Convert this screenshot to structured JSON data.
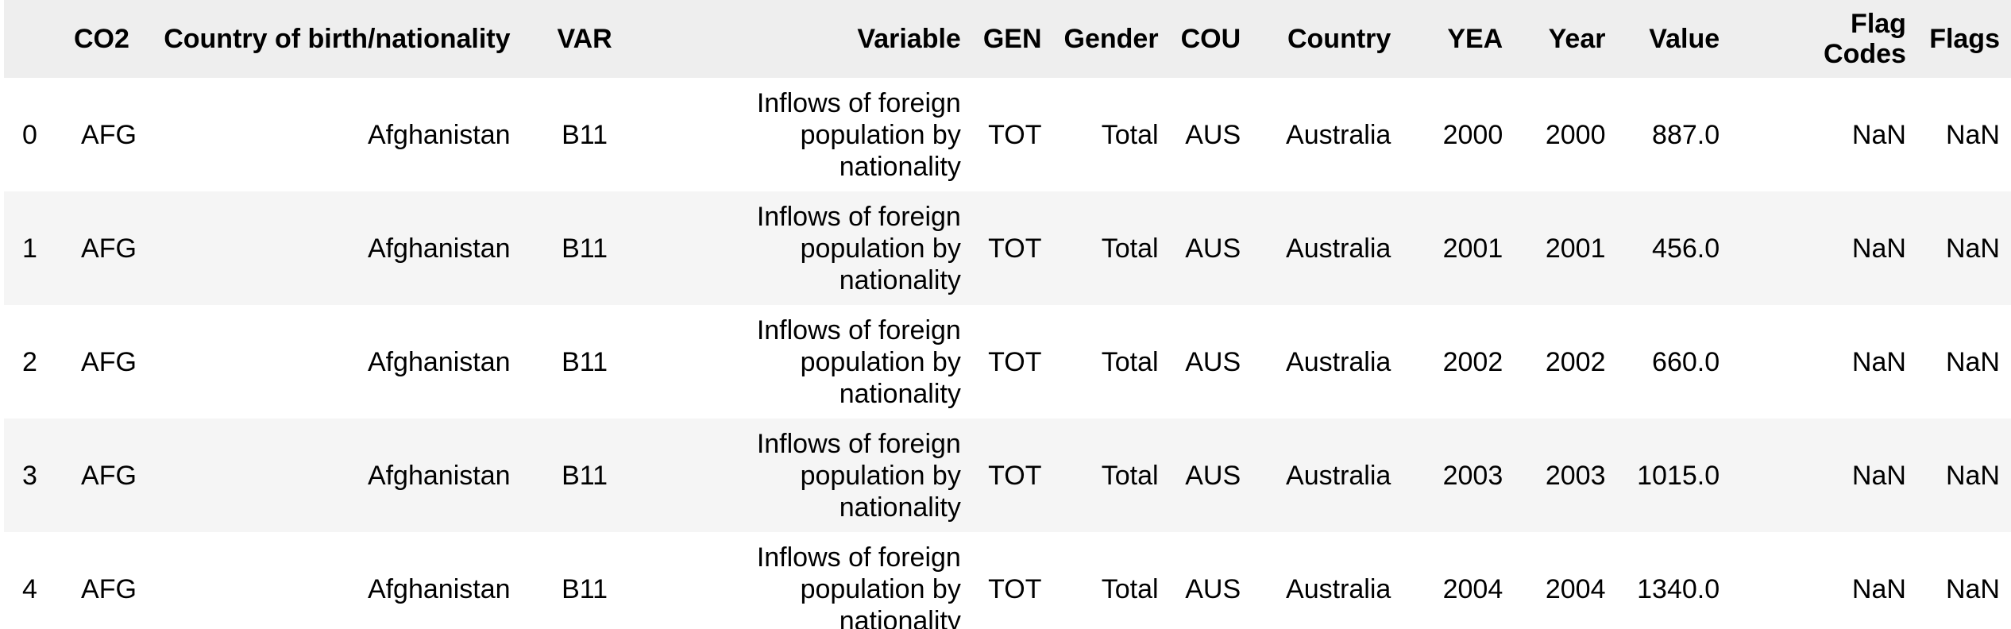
{
  "table": {
    "columns": [
      {
        "key": "index",
        "label": ""
      },
      {
        "key": "co2",
        "label": "CO2"
      },
      {
        "key": "country_birth",
        "label": "Country of birth/nationality"
      },
      {
        "key": "var",
        "label": "VAR"
      },
      {
        "key": "variable",
        "label": "Variable"
      },
      {
        "key": "gen",
        "label": "GEN"
      },
      {
        "key": "gender",
        "label": "Gender"
      },
      {
        "key": "cou",
        "label": "COU"
      },
      {
        "key": "country",
        "label": "Country"
      },
      {
        "key": "yea",
        "label": "YEA"
      },
      {
        "key": "year",
        "label": "Year"
      },
      {
        "key": "value",
        "label": "Value"
      },
      {
        "key": "flag_codes",
        "label": "Flag Codes"
      },
      {
        "key": "flags",
        "label": "Flags"
      }
    ],
    "rows": [
      {
        "index": "0",
        "co2": "AFG",
        "country_birth": "Afghanistan",
        "var": "B11",
        "variable": "Inflows of foreign population by nationality",
        "gen": "TOT",
        "gender": "Total",
        "cou": "AUS",
        "country": "Australia",
        "yea": "2000",
        "year": "2000",
        "value": "887.0",
        "flag_codes": "NaN",
        "flags": "NaN"
      },
      {
        "index": "1",
        "co2": "AFG",
        "country_birth": "Afghanistan",
        "var": "B11",
        "variable": "Inflows of foreign population by nationality",
        "gen": "TOT",
        "gender": "Total",
        "cou": "AUS",
        "country": "Australia",
        "yea": "2001",
        "year": "2001",
        "value": "456.0",
        "flag_codes": "NaN",
        "flags": "NaN"
      },
      {
        "index": "2",
        "co2": "AFG",
        "country_birth": "Afghanistan",
        "var": "B11",
        "variable": "Inflows of foreign population by nationality",
        "gen": "TOT",
        "gender": "Total",
        "cou": "AUS",
        "country": "Australia",
        "yea": "2002",
        "year": "2002",
        "value": "660.0",
        "flag_codes": "NaN",
        "flags": "NaN"
      },
      {
        "index": "3",
        "co2": "AFG",
        "country_birth": "Afghanistan",
        "var": "B11",
        "variable": "Inflows of foreign population by nationality",
        "gen": "TOT",
        "gender": "Total",
        "cou": "AUS",
        "country": "Australia",
        "yea": "2003",
        "year": "2003",
        "value": "1015.0",
        "flag_codes": "NaN",
        "flags": "NaN"
      },
      {
        "index": "4",
        "co2": "AFG",
        "country_birth": "Afghanistan",
        "var": "B11",
        "variable": "Inflows of foreign population by nationality",
        "gen": "TOT",
        "gender": "Total",
        "cou": "AUS",
        "country": "Australia",
        "yea": "2004",
        "year": "2004",
        "value": "1340.0",
        "flag_codes": "NaN",
        "flags": "NaN"
      }
    ]
  },
  "colors": {
    "header_bg": "#eeeeee",
    "row_even_bg": "#ffffff",
    "row_odd_bg": "#f5f5f5",
    "text": "#000000"
  }
}
